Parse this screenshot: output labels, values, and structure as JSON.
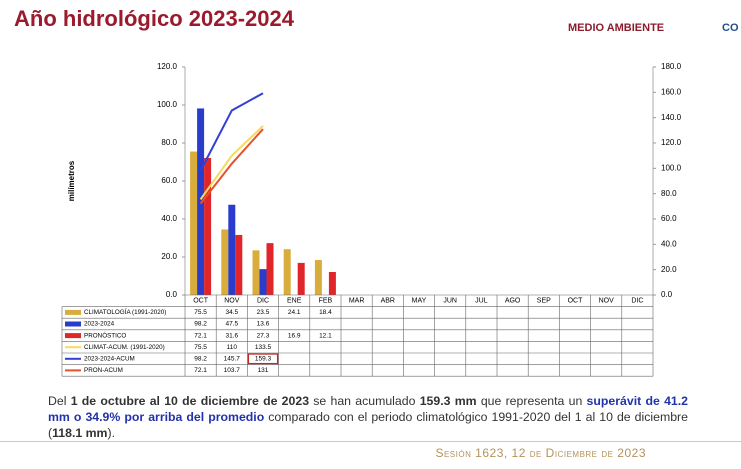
{
  "header": {
    "title": "Año hidrológico 2023-2024",
    "logo": "MEDIO AMBIENTE",
    "logo_cut": "CO"
  },
  "chart_data": {
    "type": "bar",
    "y_label": "milímetros",
    "categories": [
      "OCT",
      "NOV",
      "DIC",
      "ENE",
      "FEB",
      "MAR",
      "ABR",
      "MAY",
      "JUN",
      "JUL",
      "AGO",
      "SEP",
      "OCT",
      "NOV",
      "DIC"
    ],
    "series": [
      {
        "name": "CLIMATOLOGÍA (1991-2020)",
        "color": "#d8ad3c",
        "values": [
          75.5,
          34.5,
          23.5,
          24.1,
          18.4,
          null,
          null,
          null,
          null,
          null,
          null,
          null,
          null,
          null,
          null
        ]
      },
      {
        "name": "2023-2024",
        "color": "#2a3ccc",
        "values": [
          98.2,
          47.5,
          13.6,
          null,
          null,
          null,
          null,
          null,
          null,
          null,
          null,
          null,
          null,
          null,
          null
        ]
      },
      {
        "name": "PRONÓSTICO",
        "color": "#e0262a",
        "values": [
          72.1,
          31.6,
          27.3,
          16.9,
          12.1,
          null,
          null,
          null,
          null,
          null,
          null,
          null,
          null,
          null,
          null
        ]
      },
      {
        "name": "CLIMAT-ACUM. (1991-2020)",
        "color": "#f6da5e",
        "type": "line",
        "axis": "y2",
        "values": [
          75.5,
          110,
          133.5,
          null,
          null,
          null,
          null,
          null,
          null,
          null,
          null,
          null,
          null,
          null,
          null
        ]
      },
      {
        "name": "2023-2024-ACUM",
        "color": "#3040d8",
        "type": "line",
        "axis": "y2",
        "values": [
          98.2,
          145.7,
          159.3,
          null,
          null,
          null,
          null,
          null,
          null,
          null,
          null,
          null,
          null,
          null,
          null
        ]
      },
      {
        "name": "PRON-ACUM",
        "color": "#e85028",
        "type": "line",
        "axis": "y2",
        "values": [
          72.1,
          103.7,
          131,
          null,
          null,
          null,
          null,
          null,
          null,
          null,
          null,
          null,
          null,
          null,
          null
        ]
      }
    ],
    "ylim": [
      0,
      120
    ],
    "yticks": [
      {
        "value": 0,
        "label": "0.0"
      },
      {
        "value": 20,
        "label": "20.0"
      },
      {
        "value": 40,
        "label": "40.0"
      },
      {
        "value": 60,
        "label": "60.0"
      },
      {
        "value": 80,
        "label": "80.0"
      },
      {
        "value": 100,
        "label": "100.0"
      },
      {
        "value": 120,
        "label": "120.0"
      }
    ],
    "y2lim": [
      0,
      180
    ],
    "y2ticks": [
      {
        "value": 0,
        "label": "0.0"
      },
      {
        "value": 20,
        "label": "20.0"
      },
      {
        "value": 40,
        "label": "40.0"
      },
      {
        "value": 60,
        "label": "60.0"
      },
      {
        "value": 80,
        "label": "80.0"
      },
      {
        "value": 100,
        "label": "100.0"
      },
      {
        "value": 120,
        "label": "120.0"
      },
      {
        "value": 140,
        "label": "140.0"
      },
      {
        "value": 160,
        "label": "160.0"
      },
      {
        "value": 180,
        "label": "180.0"
      }
    ],
    "grid": false,
    "highlight": {
      "series": 4,
      "index": 2,
      "color": "#c0282a"
    }
  },
  "paragraph": [
    "Del ",
    "1 de octubre al 10 de diciembre de 2023",
    " se han acumulado ",
    "159.3 mm",
    " que representa un ",
    "superávit de 41.2 mm o 34.9% por arriba del promedio",
    " comparado con el periodo climatológico 1991-2020 del 1 al 10 de diciembre (",
    "118.1 mm",
    ")."
  ],
  "footer": "Sesión 1623, 12 de Diciembre de 2023"
}
